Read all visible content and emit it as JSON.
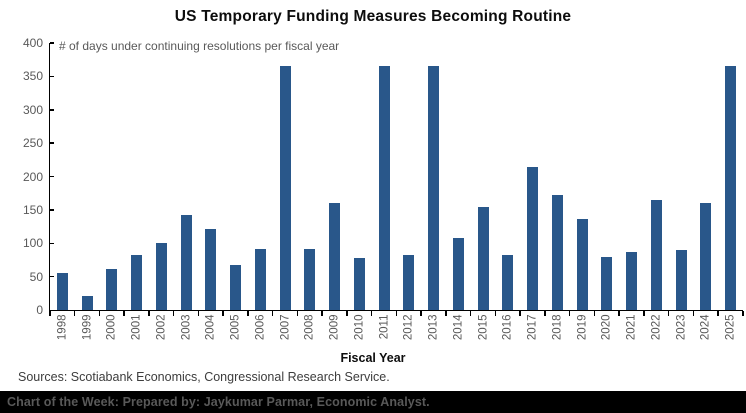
{
  "header": {
    "title": "US Temporary Funding Measures Becoming Routine"
  },
  "chart": {
    "annotation": "# of days under continuing resolutions per fiscal year",
    "xlabel": "Fiscal Year"
  },
  "chart_data": {
    "type": "bar",
    "title": "US Temporary Funding Measures Becoming Routine",
    "subtitle": "# of days under continuing resolutions per fiscal year",
    "xlabel": "Fiscal Year",
    "ylabel": "",
    "ylim": [
      0,
      400
    ],
    "ytick_step": 50,
    "grid": false,
    "legend": false,
    "bar_color": "#29578A",
    "categories": [
      "1998",
      "1999",
      "2000",
      "2001",
      "2002",
      "2003",
      "2004",
      "2005",
      "2006",
      "2007",
      "2008",
      "2009",
      "2010",
      "2011",
      "2012",
      "2013",
      "2014",
      "2015",
      "2016",
      "2017",
      "2018",
      "2019",
      "2020",
      "2021",
      "2022",
      "2023",
      "2024",
      "2025"
    ],
    "values": [
      56,
      21,
      62,
      82,
      101,
      143,
      122,
      68,
      92,
      365,
      92,
      161,
      78,
      365,
      83,
      365,
      108,
      155,
      83,
      215,
      172,
      137,
      80,
      87,
      165,
      90,
      160,
      365
    ]
  },
  "footer": {
    "sources": "Sources: Scotiabank Economics, Congressional Research Service.",
    "credit": "Chart of the Week: Prepared by: Jaykumar Parmar, Economic Analyst."
  },
  "colors": {
    "bar": "#29578A",
    "axis_text": "#595959",
    "footer_bg": "#000000",
    "footer_text": "#595959"
  }
}
